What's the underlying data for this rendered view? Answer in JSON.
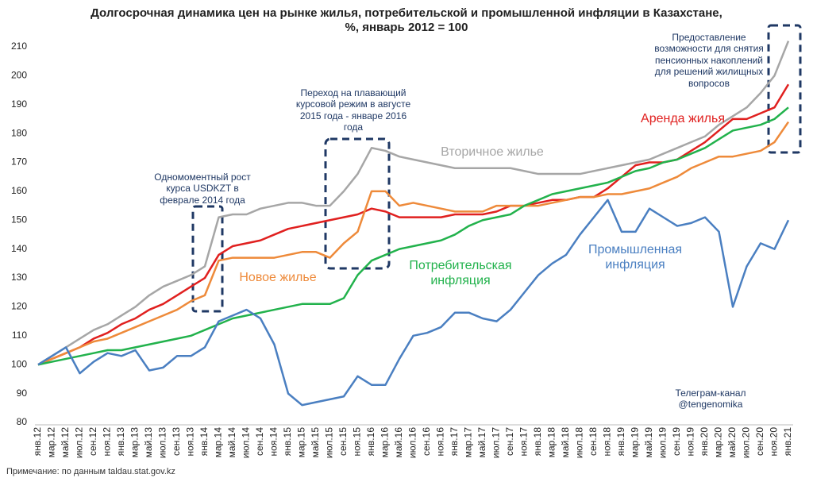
{
  "chart_data": {
    "type": "line",
    "title": "Долгосрочная динамика цен на рынке жилья, потребительской и промышленной инфляции в Казахстане, %, январь 2012 = 100",
    "categories": [
      "янв.12",
      "мар.12",
      "май.12",
      "июл.12",
      "сен.12",
      "ноя.12",
      "янв.13",
      "мар.13",
      "май.13",
      "июл.13",
      "сен.13",
      "ноя.13",
      "янв.14",
      "мар.14",
      "май.14",
      "июл.14",
      "сен.14",
      "ноя.14",
      "янв.15",
      "мар.15",
      "май.15",
      "июл.15",
      "сен.15",
      "ноя.15",
      "янв.16",
      "мар.16",
      "май.16",
      "июл.16",
      "сен.16",
      "ноя.16",
      "янв.17",
      "мар.17",
      "май.17",
      "июл.17",
      "сен.17",
      "ноя.17",
      "янв.18",
      "мар.18",
      "май.18",
      "июл.18",
      "сен.18",
      "ноя.18",
      "янв.19",
      "мар.19",
      "май.19",
      "июл.19",
      "сен.19",
      "ноя.19",
      "янв.20",
      "мар.20",
      "май.20",
      "июл.20",
      "сен.20",
      "ноя.20",
      "янв.21"
    ],
    "series": [
      {
        "name": "Вторичное жилье",
        "color": "#a6a6a6",
        "values": [
          100,
          103,
          106,
          109,
          112,
          114,
          117,
          120,
          124,
          127,
          129,
          131,
          134,
          151,
          152,
          152,
          154,
          155,
          156,
          156,
          155,
          155,
          160,
          166,
          175,
          174,
          172,
          171,
          170,
          169,
          168,
          168,
          168,
          168,
          168,
          167,
          166,
          166,
          166,
          166,
          167,
          168,
          169,
          170,
          171,
          173,
          175,
          177,
          179,
          183,
          186,
          189,
          194,
          200,
          212
        ]
      },
      {
        "name": "Аренда жилья",
        "color": "#e0201f",
        "values": [
          100,
          102,
          104,
          106,
          109,
          111,
          114,
          116,
          119,
          121,
          124,
          127,
          130,
          138,
          141,
          142,
          143,
          145,
          147,
          148,
          149,
          150,
          151,
          152,
          154,
          153,
          151,
          151,
          151,
          151,
          152,
          152,
          152,
          153,
          155,
          155,
          156,
          157,
          157,
          158,
          158,
          161,
          165,
          169,
          170,
          170,
          171,
          174,
          177,
          181,
          185,
          185,
          187,
          189,
          197
        ]
      },
      {
        "name": "Новое жилье",
        "color": "#ee8a3a",
        "values": [
          100,
          102,
          104,
          106,
          108,
          109,
          111,
          113,
          115,
          117,
          119,
          122,
          124,
          136,
          137,
          137,
          137,
          137,
          138,
          139,
          139,
          137,
          142,
          146,
          160,
          160,
          155,
          156,
          155,
          154,
          153,
          153,
          153,
          155,
          155,
          155,
          155,
          156,
          157,
          158,
          158,
          159,
          159,
          160,
          161,
          163,
          165,
          168,
          170,
          172,
          172,
          173,
          174,
          177,
          184
        ]
      },
      {
        "name": "Потребительская инфляция",
        "color": "#22b24c",
        "values": [
          100,
          101,
          102,
          103,
          104,
          105,
          105,
          106,
          107,
          108,
          109,
          110,
          112,
          114,
          116,
          117,
          118,
          119,
          120,
          121,
          121,
          121,
          123,
          131,
          136,
          138,
          140,
          141,
          142,
          143,
          145,
          148,
          150,
          151,
          152,
          155,
          157,
          159,
          160,
          161,
          162,
          163,
          165,
          167,
          168,
          170,
          171,
          173,
          175,
          178,
          181,
          182,
          183,
          185,
          189
        ]
      },
      {
        "name": "Промышленная инфляция",
        "color": "#4a7fc1",
        "values": [
          100,
          103,
          106,
          97,
          101,
          104,
          103,
          105,
          98,
          99,
          103,
          103,
          106,
          115,
          117,
          119,
          116,
          107,
          90,
          86,
          87,
          88,
          89,
          96,
          93,
          93,
          102,
          110,
          111,
          113,
          118,
          118,
          116,
          115,
          119,
          125,
          131,
          135,
          138,
          145,
          151,
          157,
          146,
          146,
          154,
          151,
          148,
          149,
          151,
          146,
          120,
          134,
          142,
          140,
          150
        ]
      }
    ],
    "ylim": [
      80,
      213
    ],
    "yticks": [
      80,
      90,
      100,
      110,
      120,
      130,
      140,
      150,
      160,
      170,
      180,
      190,
      200,
      210
    ],
    "grid": false,
    "annotations": [
      "Одномоментный рост курса USDKZT в феврале 2014 года",
      "Переход на плавающий курсовой режим в августе 2015 года - январе 2016 года",
      "Предоставление возможности для снятия пенсионных накоплений для решений жилищных вопросов"
    ],
    "source": "Телеграм-канал @tengenomika",
    "note": "Примечание: по данным taldau.stat.gov.kz"
  }
}
